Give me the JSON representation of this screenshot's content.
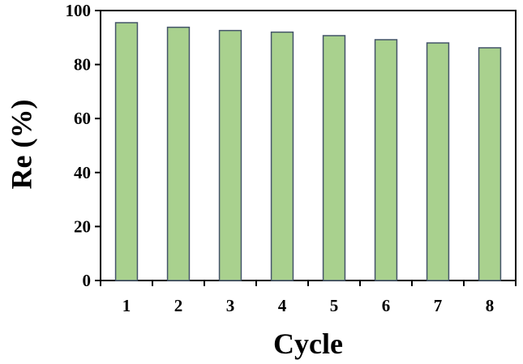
{
  "chart_data": {
    "type": "bar",
    "categories": [
      "1",
      "2",
      "3",
      "4",
      "5",
      "6",
      "7",
      "8"
    ],
    "values": [
      95.5,
      93.8,
      92.6,
      92.0,
      90.7,
      89.2,
      88.0,
      86.2
    ],
    "xlabel": "Cycle",
    "ylabel": "Re (%)",
    "ylim": [
      0,
      100
    ],
    "yticks": [
      "0",
      "20",
      "40",
      "60",
      "80",
      "100"
    ],
    "grid": false,
    "legend": "none",
    "bar_color": "#a9d18e",
    "bar_edge_color": "#44546a",
    "axis_color": "#000000"
  }
}
